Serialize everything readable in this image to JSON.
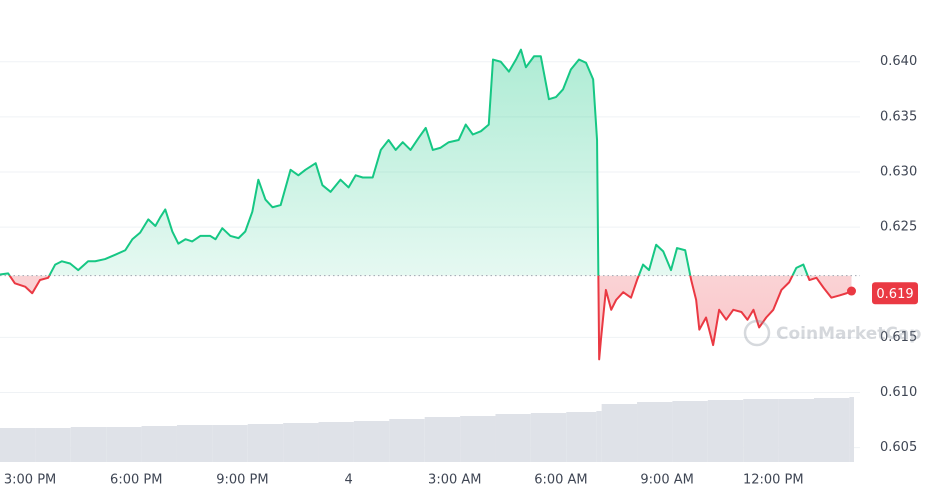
{
  "chart_data": {
    "type": "line",
    "x": [
      14.15,
      14.38,
      14.57,
      14.86,
      15.06,
      15.28,
      15.51,
      15.71,
      15.9,
      16.13,
      16.36,
      16.64,
      16.84,
      17.12,
      17.41,
      17.69,
      17.89,
      18.11,
      18.34,
      18.54,
      18.68,
      18.82,
      19.02,
      19.19,
      19.39,
      19.58,
      19.81,
      20.09,
      20.24,
      20.43,
      20.66,
      20.89,
      21.08,
      21.28,
      21.45,
      21.65,
      21.85,
      22.08,
      22.36,
      22.58,
      22.78,
      23.07,
      23.26,
      23.49,
      23.77,
      24.0,
      24.2,
      24.4,
      24.68,
      24.91,
      25.13,
      25.33,
      25.53,
      25.75,
      25.98,
      26.18,
      26.38,
      26.6,
      26.83,
      27.11,
      27.31,
      27.51,
      27.74,
      27.96,
      28.08,
      28.3,
      28.53,
      28.73,
      28.87,
      29.01,
      29.24,
      29.43,
      29.66,
      29.86,
      30.06,
      30.28,
      30.51,
      30.71,
      30.91,
      31.02,
      31.08,
      31.13,
      31.27,
      31.42,
      31.56,
      31.76,
      31.98,
      32.15,
      32.32,
      32.49,
      32.69,
      32.89,
      33.11,
      33.28,
      33.51,
      33.68,
      33.82,
      33.91,
      34.1,
      34.3,
      34.47,
      34.67,
      34.87,
      35.1,
      35.27,
      35.44,
      35.6,
      35.8,
      36.0,
      36.23,
      36.45,
      36.65,
      36.85,
      37.02,
      37.22,
      37.42,
      37.64,
      37.87,
      38.07,
      38.21
    ],
    "values": [
      0.6207,
      0.6208,
      0.6199,
      0.6196,
      0.619,
      0.6202,
      0.6204,
      0.6216,
      0.6219,
      0.6217,
      0.6211,
      0.6219,
      0.6219,
      0.6221,
      0.6225,
      0.6229,
      0.6239,
      0.6245,
      0.6257,
      0.6251,
      0.6259,
      0.6266,
      0.6246,
      0.6235,
      0.6239,
      0.6237,
      0.6242,
      0.6242,
      0.6239,
      0.6249,
      0.6242,
      0.624,
      0.6246,
      0.6264,
      0.6293,
      0.6275,
      0.6268,
      0.627,
      0.6302,
      0.6297,
      0.6302,
      0.6308,
      0.6288,
      0.6282,
      0.6293,
      0.6286,
      0.6297,
      0.6295,
      0.6295,
      0.632,
      0.6329,
      0.632,
      0.6327,
      0.632,
      0.6331,
      0.634,
      0.632,
      0.6322,
      0.6327,
      0.6329,
      0.6343,
      0.6334,
      0.6337,
      0.6343,
      0.6402,
      0.64,
      0.6391,
      0.6402,
      0.6411,
      0.6395,
      0.6405,
      0.6405,
      0.6366,
      0.6368,
      0.6375,
      0.6393,
      0.6402,
      0.6399,
      0.6384,
      0.6329,
      0.613,
      0.6148,
      0.6193,
      0.6175,
      0.6184,
      0.6191,
      0.6186,
      0.6202,
      0.6216,
      0.6211,
      0.6234,
      0.6228,
      0.6211,
      0.6231,
      0.6229,
      0.6202,
      0.6184,
      0.6157,
      0.6168,
      0.6143,
      0.6175,
      0.6166,
      0.6175,
      0.6173,
      0.6166,
      0.6175,
      0.6159,
      0.6168,
      0.6175,
      0.6193,
      0.62,
      0.6213,
      0.6216,
      0.6202,
      0.6204,
      0.6195,
      0.6186,
      0.6188,
      0.619,
      0.6192
    ],
    "baseline": 0.6206,
    "current_price": 0.619,
    "up_color": "#16c784",
    "down_color": "#ea3943",
    "xlim": [
      14.15,
      38.45
    ],
    "ylim": [
      0.6007,
      0.6456
    ],
    "xticks": [
      {
        "value": 15,
        "label": "3:00 PM"
      },
      {
        "value": 18,
        "label": "6:00 PM"
      },
      {
        "value": 21,
        "label": "9:00 PM"
      },
      {
        "value": 24,
        "label": "4"
      },
      {
        "value": 27,
        "label": "3:00 AM"
      },
      {
        "value": 30,
        "label": "6:00 AM"
      },
      {
        "value": 33,
        "label": "9:00 AM"
      },
      {
        "value": 36,
        "label": "12:00 PM"
      }
    ],
    "yticks": [
      {
        "value": 0.64,
        "label": "0.640"
      },
      0.635,
      {
        "value": 0.63,
        "label": "0.630"
      },
      0.625,
      0.615,
      {
        "value": 0.61,
        "label": "0.610"
      },
      0.605
    ],
    "grid": true,
    "volume": {
      "color": "#dfe2e8",
      "x": [
        14.15,
        15.15,
        16.15,
        17.15,
        18.15,
        19.15,
        20.15,
        21.15,
        22.15,
        23.15,
        24.15,
        25.15,
        26.15,
        27.15,
        28.15,
        29.15,
        30.15,
        31.0,
        31.15,
        32.15,
        33.15,
        34.15,
        35.15,
        36.15,
        37.15,
        38.15
      ],
      "values": [
        34,
        34,
        35,
        35,
        36,
        37,
        37,
        38,
        39,
        40,
        41,
        43,
        45,
        46,
        48,
        49,
        50,
        51,
        58,
        60,
        61,
        62,
        63,
        63,
        64,
        65
      ],
      "ylim": [
        0,
        100
      ]
    },
    "watermark": "CoinMarketCap"
  }
}
